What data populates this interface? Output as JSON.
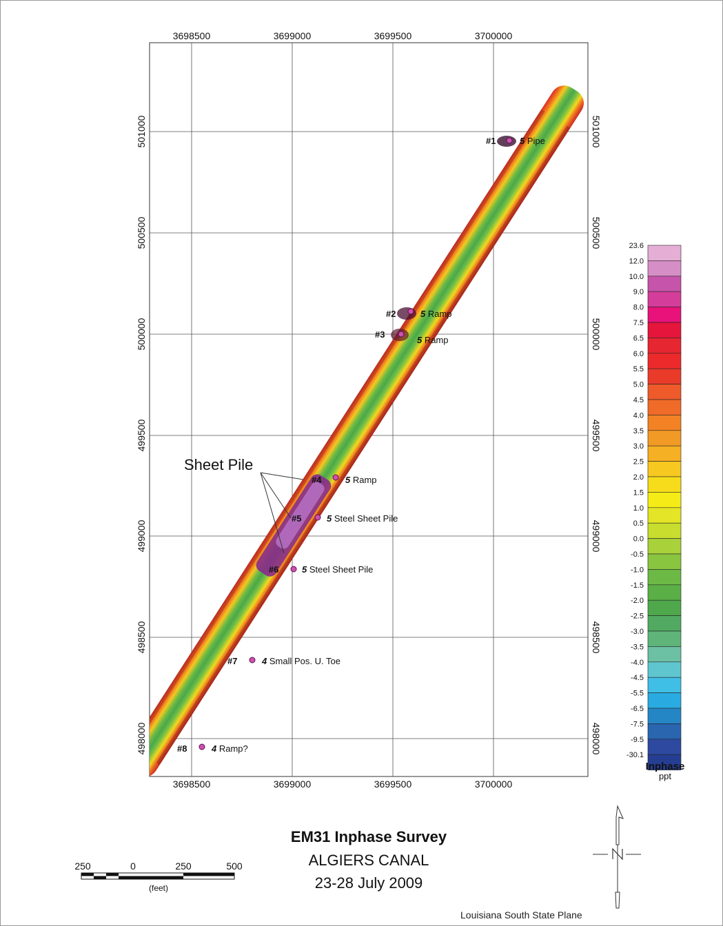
{
  "map": {
    "title": "EM31 Inphase Survey",
    "subtitle": "ALGIERS CANAL",
    "date": "23-28 July 2009",
    "projection": "Louisiana South State Plane",
    "x_ticks": [
      "3698500",
      "3699000",
      "3699500",
      "3700000"
    ],
    "y_ticks": [
      "501000",
      "500500",
      "500000",
      "499500",
      "499000",
      "498500",
      "498000"
    ],
    "annotation": "Sheet Pile",
    "anomalies": [
      {
        "id": "#1",
        "score": "5",
        "label": "Pipe"
      },
      {
        "id": "#2",
        "score": "5",
        "label": "Ramp"
      },
      {
        "id": "#3",
        "score": "5",
        "label": "Ramp"
      },
      {
        "id": "#4",
        "score": "5",
        "label": "Ramp"
      },
      {
        "id": "#5",
        "score": "5",
        "label": "Steel Sheet Pile"
      },
      {
        "id": "#6",
        "score": "5",
        "label": "Steel Sheet Pile"
      },
      {
        "id": "#7",
        "score": "4",
        "label": "Small Pos. U. Toe"
      },
      {
        "id": "#8",
        "score": "4",
        "label": "Ramp?"
      }
    ]
  },
  "legend": {
    "title": "Inphase",
    "unit": "ppt",
    "labels": [
      "23.6",
      "12.0",
      "10.0",
      "9.0",
      "8.0",
      "7.5",
      "6.5",
      "6.0",
      "5.5",
      "5.0",
      "4.5",
      "4.0",
      "3.5",
      "3.0",
      "2.5",
      "2.0",
      "1.5",
      "1.0",
      "0.5",
      "0.0",
      "-0.5",
      "-1.0",
      "-1.5",
      "-2.0",
      "-2.5",
      "-3.0",
      "-3.5",
      "-4.0",
      "-4.5",
      "-5.5",
      "-6.5",
      "-7.5",
      "-9.5",
      "-30.1"
    ],
    "colors": [
      "#e5aed5",
      "#d68fc6",
      "#c654aa",
      "#d43d9a",
      "#e8127a",
      "#e5153c",
      "#e62630",
      "#ec2a2b",
      "#ea3a2a",
      "#ee5a2a",
      "#f06a28",
      "#f28224",
      "#f29a26",
      "#f6b024",
      "#f7c81f",
      "#f7dc1b",
      "#f5ec17",
      "#e3e526",
      "#c8dd2d",
      "#a9d13a",
      "#8ac540",
      "#6cb945",
      "#5aaf47",
      "#4fa84c",
      "#52aa62",
      "#5fb47a",
      "#6cc0a4",
      "#5fc6cf",
      "#3fbfe6",
      "#29abe2",
      "#2586c6",
      "#2a65b0",
      "#2d49a0",
      "#263e92"
    ]
  },
  "scale_bar": {
    "labels": [
      "250",
      "0",
      "250",
      "500"
    ],
    "unit": "(feet)"
  },
  "north_arrow": {
    "label": "N"
  }
}
